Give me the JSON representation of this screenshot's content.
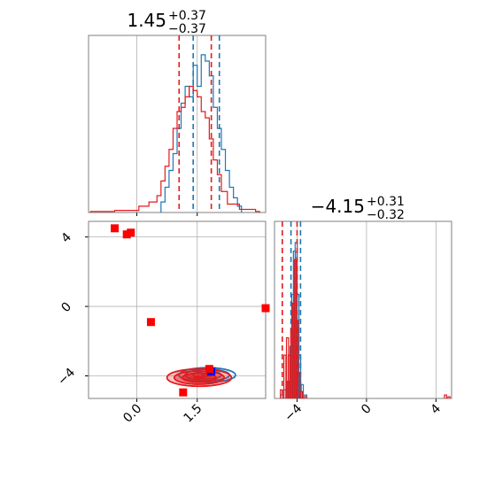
{
  "chart_data": [
    {
      "type": "histogram",
      "panel": "top-left",
      "title_value": "1.45",
      "title_plus": "+0.37",
      "title_minus": "−0.37",
      "xlim": [
        -1.2,
        3.2
      ],
      "series": [
        {
          "color": "#1f77b4",
          "bins": [
            [
              0.65,
              0.05
            ],
            [
              0.75,
              0.12
            ],
            [
              0.85,
              0.2
            ],
            [
              0.95,
              0.28
            ],
            [
              1.05,
              0.4
            ],
            [
              1.15,
              0.52
            ],
            [
              1.25,
              0.6
            ],
            [
              1.35,
              0.55
            ],
            [
              1.45,
              0.7
            ],
            [
              1.55,
              0.6
            ],
            [
              1.65,
              0.75
            ],
            [
              1.75,
              0.72
            ],
            [
              1.85,
              0.65
            ],
            [
              1.95,
              0.5
            ],
            [
              2.05,
              0.4
            ],
            [
              2.15,
              0.3
            ],
            [
              2.25,
              0.2
            ],
            [
              2.35,
              0.12
            ],
            [
              2.45,
              0.07
            ],
            [
              2.55,
              0.03
            ]
          ],
          "vlines": [
            1.4,
            2.05
          ]
        },
        {
          "color": "#e41a1c",
          "bins": [
            [
              -1.1,
              0.005
            ],
            [
              -0.5,
              0.01
            ],
            [
              0.1,
              0.03
            ],
            [
              0.35,
              0.05
            ],
            [
              0.55,
              0.08
            ],
            [
              0.65,
              0.15
            ],
            [
              0.75,
              0.22
            ],
            [
              0.85,
              0.3
            ],
            [
              0.95,
              0.4
            ],
            [
              1.05,
              0.48
            ],
            [
              1.15,
              0.5
            ],
            [
              1.25,
              0.55
            ],
            [
              1.35,
              0.6
            ],
            [
              1.45,
              0.58
            ],
            [
              1.55,
              0.55
            ],
            [
              1.65,
              0.48
            ],
            [
              1.75,
              0.45
            ],
            [
              1.85,
              0.35
            ],
            [
              1.95,
              0.25
            ],
            [
              2.05,
              0.18
            ],
            [
              2.15,
              0.1
            ],
            [
              2.3,
              0.04
            ],
            [
              2.6,
              0.015
            ],
            [
              3.0,
              0.005
            ]
          ],
          "vlines": [
            1.05,
            1.85
          ]
        }
      ]
    },
    {
      "type": "scatter",
      "panel": "bottom-left",
      "xlim": [
        -1.2,
        3.2
      ],
      "ylim": [
        -5.3,
        4.9
      ],
      "xticks": [
        {
          "value": 0.0,
          "label": "0.0"
        },
        {
          "value": 1.5,
          "label": "1.5"
        }
      ],
      "yticks": [
        {
          "value": 4,
          "label": "4"
        },
        {
          "value": 0,
          "label": "0"
        },
        {
          "value": -4,
          "label": "−4"
        }
      ],
      "contours": [
        {
          "color": "#1f77b4",
          "center": [
            1.75,
            -3.95
          ],
          "radii": [
            [
              0.7,
              0.42
            ],
            [
              0.55,
              0.33
            ],
            [
              0.35,
              0.22
            ]
          ]
        },
        {
          "color": "#e41a1c",
          "center": [
            1.55,
            -4.1
          ],
          "radii": [
            [
              0.8,
              0.5
            ],
            [
              0.62,
              0.38
            ],
            [
              0.42,
              0.26
            ]
          ]
        }
      ],
      "points": [
        {
          "x": -0.55,
          "y": 4.5,
          "color": "#ff0000"
        },
        {
          "x": -0.25,
          "y": 4.15,
          "color": "#ff0000"
        },
        {
          "x": -0.15,
          "y": 4.25,
          "color": "#ff0000"
        },
        {
          "x": 0.35,
          "y": -0.9,
          "color": "#ff0000"
        },
        {
          "x": 3.2,
          "y": -0.1,
          "color": "#ff0000"
        },
        {
          "x": 1.15,
          "y": -4.95,
          "color": "#ff0000"
        },
        {
          "x": 1.85,
          "y": -3.75,
          "color": "#0000ff"
        },
        {
          "x": 1.8,
          "y": -3.6,
          "color": "#ff0000"
        }
      ]
    },
    {
      "type": "histogram",
      "panel": "bottom-right",
      "title_value": "−4.15",
      "title_plus": "+0.31",
      "title_minus": "−0.32",
      "xlim": [
        -5.3,
        4.9
      ],
      "xticks": [
        {
          "value": -4,
          "label": "−4"
        },
        {
          "value": 0,
          "label": "0"
        },
        {
          "value": 4,
          "label": "4"
        }
      ],
      "series": [
        {
          "color": "#1f77b4",
          "bins": [
            [
              -4.9,
              0.02
            ],
            [
              -4.7,
              0.05
            ],
            [
              -4.5,
              0.1
            ],
            [
              -4.35,
              0.3
            ],
            [
              -4.25,
              0.6
            ],
            [
              -4.15,
              0.85
            ],
            [
              -4.05,
              0.9
            ],
            [
              -3.95,
              0.6
            ],
            [
              -3.85,
              0.25
            ],
            [
              -3.7,
              0.08
            ],
            [
              -3.5,
              0.02
            ]
          ],
          "vlines": [
            -4.35,
            -3.8
          ]
        },
        {
          "color": "#e41a1c",
          "bins": [
            [
              -4.9,
              0.05
            ],
            [
              -4.7,
              0.25
            ],
            [
              -4.55,
              0.35
            ],
            [
              -4.45,
              0.25
            ],
            [
              -4.3,
              0.4
            ],
            [
              -4.2,
              0.55
            ],
            [
              -4.1,
              0.8
            ],
            [
              -4.0,
              0.45
            ],
            [
              -3.9,
              0.15
            ],
            [
              -3.75,
              0.04
            ],
            [
              -3.5,
              0.01
            ],
            [
              4.55,
              0.02
            ],
            [
              4.75,
              0.01
            ]
          ],
          "vlines": [
            -4.85,
            -4.0
          ]
        }
      ]
    }
  ]
}
